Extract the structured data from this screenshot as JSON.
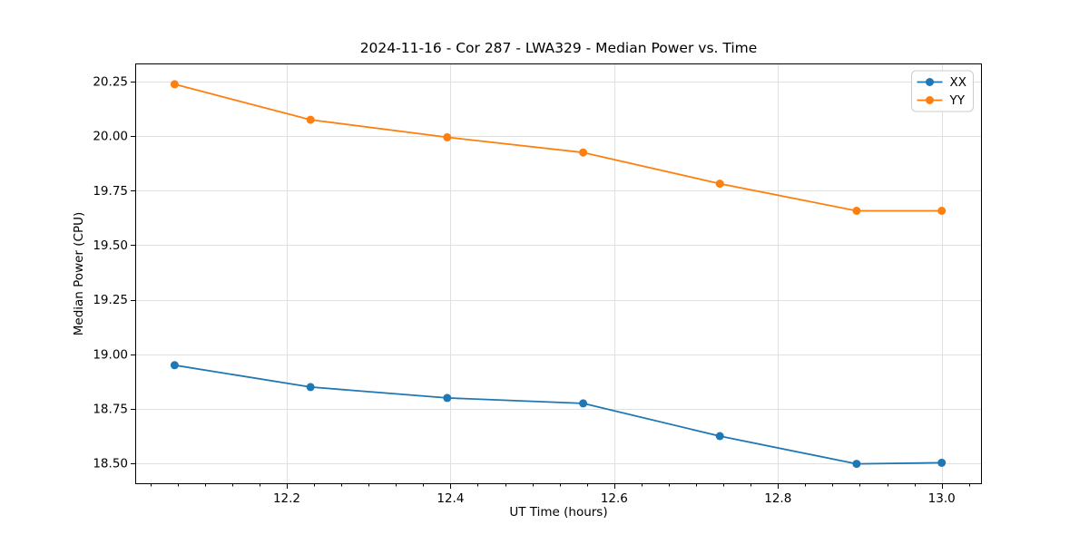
{
  "chart_data": {
    "type": "line",
    "title": "2024-11-16 - Cor 287 - LWA329 - Median Power vs. Time",
    "xlabel": "UT Time (hours)",
    "ylabel": "Median Power (CPU)",
    "x": [
      12.063,
      12.229,
      12.396,
      12.562,
      12.729,
      12.896,
      13.0
    ],
    "series": [
      {
        "name": "XX",
        "color": "#1f77b4",
        "values": [
          18.95,
          18.85,
          18.8,
          18.775,
          18.625,
          18.498,
          18.503
        ]
      },
      {
        "name": "YY",
        "color": "#ff7f0e",
        "values": [
          20.238,
          20.075,
          19.995,
          19.925,
          19.782,
          19.658,
          19.658
        ]
      }
    ],
    "xlim": [
      12.016,
      13.048
    ],
    "ylim": [
      18.409,
      20.329
    ],
    "xticks": {
      "values": [
        12.2,
        12.4,
        12.6,
        12.8,
        13.0
      ],
      "labels": [
        "12.2",
        "12.4",
        "12.6",
        "12.8",
        "13.0"
      ]
    },
    "yticks": {
      "values": [
        18.5,
        18.75,
        19.0,
        19.25,
        19.5,
        19.75,
        20.0,
        20.25
      ],
      "labels": [
        "18.50",
        "18.75",
        "19.00",
        "19.25",
        "19.50",
        "19.75",
        "20.00",
        "20.25"
      ]
    },
    "x_minor_divisions": 6,
    "grid": true,
    "grid_color": "#e0e0e0",
    "spine_color": "#000000",
    "background": "#ffffff",
    "legend": {
      "position": "upper right",
      "entries": [
        "XX",
        "YY"
      ],
      "border_color": "#cccccc",
      "fill": "#ffffff"
    }
  }
}
